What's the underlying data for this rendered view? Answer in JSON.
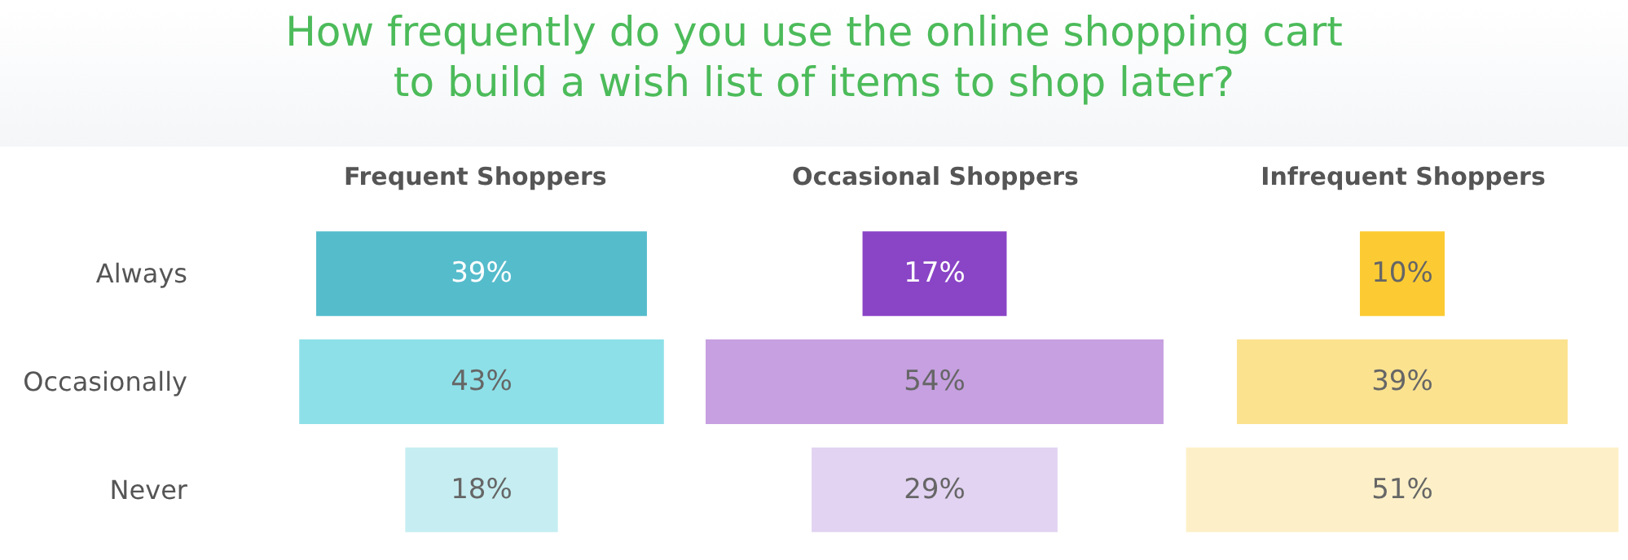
{
  "chart_data": [
    {
      "type": "other",
      "title": "How frequently do you use the online shopping cart\nto build a wish list of items to shop later?",
      "subtitle": "Frequent Shoppers",
      "categories": [
        "Always",
        "Occasionally",
        "Never"
      ],
      "values": [
        39,
        43,
        18
      ],
      "colors": [
        "#55bccc",
        "#8de0e8",
        "#c6eef2"
      ],
      "value_labels": [
        "39%",
        "43%",
        "18%"
      ]
    },
    {
      "type": "other",
      "subtitle": "Occasional Shoppers",
      "categories": [
        null,
        null,
        null
      ],
      "values": [
        17,
        54,
        29
      ],
      "colors": [
        "#8a44c6",
        "#c6a0e0",
        "#e2d3f2"
      ],
      "value_labels": [
        "17%",
        "54%",
        "29%"
      ]
    },
    {
      "type": "other",
      "subtitle": "Infrequent Shoppers",
      "categories": [
        null,
        null,
        null
      ],
      "values": [
        10,
        39,
        51
      ],
      "colors": [
        "#fccb33",
        "#fbe28f",
        "#fdf0c8"
      ],
      "value_labels": [
        "10%",
        "39%",
        "51%"
      ]
    }
  ]
}
